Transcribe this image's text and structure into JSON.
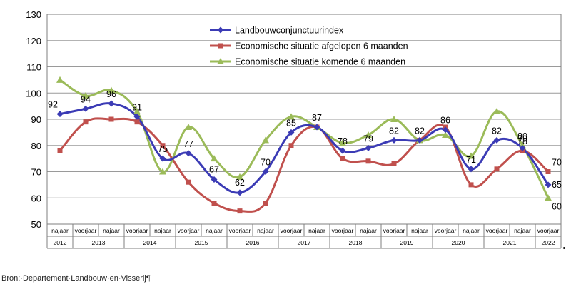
{
  "chart_data": {
    "type": "line",
    "title": "",
    "xlabel": "",
    "ylabel": "",
    "ylim": [
      50,
      130
    ],
    "yticks": [
      50,
      60,
      70,
      80,
      90,
      100,
      110,
      120,
      130
    ],
    "grid": "horizontal",
    "legend_position": "top-center",
    "categories": [
      "najaar",
      "voorjaar",
      "najaar",
      "voorjaar",
      "najaar",
      "voorjaar",
      "najaar",
      "voorjaar",
      "najaar",
      "voorjaar",
      "najaar",
      "voorjaar",
      "najaar",
      "voorjaar",
      "najaar",
      "voorjaar",
      "najaar",
      "voorjaar",
      "najaar",
      "voorjaar"
    ],
    "years": [
      {
        "label": "2012",
        "start": 0,
        "end": 0
      },
      {
        "label": "2013",
        "start": 1,
        "end": 2
      },
      {
        "label": "2014",
        "start": 3,
        "end": 4
      },
      {
        "label": "2015",
        "start": 5,
        "end": 6
      },
      {
        "label": "2016",
        "start": 7,
        "end": 8
      },
      {
        "label": "2017",
        "start": 9,
        "end": 10
      },
      {
        "label": "2018",
        "start": 11,
        "end": 12
      },
      {
        "label": "2019",
        "start": 13,
        "end": 14
      },
      {
        "label": "2020",
        "start": 15,
        "end": 16
      },
      {
        "label": "2021",
        "start": 17,
        "end": 18
      },
      {
        "label": "2022",
        "start": 19,
        "end": 19
      }
    ],
    "series": [
      {
        "name": "Landbouwconjunctuurindex",
        "color": "#3b3bb5",
        "marker": "diamond",
        "values": [
          92,
          94,
          96,
          91,
          75,
          77,
          67,
          62,
          70,
          85,
          87,
          78,
          79,
          82,
          82,
          86,
          71,
          82,
          79,
          65
        ],
        "labels": [
          "92",
          "94",
          "96",
          "91",
          "75",
          "77",
          "67",
          "62",
          "70",
          "85",
          "87",
          "78",
          "79",
          "82",
          "82",
          "86",
          "71",
          "82",
          "79",
          "65"
        ]
      },
      {
        "name": "Economische situatie afgelopen 6 maanden",
        "color": "#c0504d",
        "marker": "square",
        "values": [
          78,
          89,
          90,
          89,
          80,
          66,
          58,
          55,
          58,
          80,
          87,
          75,
          74,
          73,
          82,
          87,
          65,
          71,
          78,
          70
        ],
        "labels": [
          "",
          "",
          "",
          "",
          "",
          "",
          "",
          "",
          "",
          "",
          "",
          "",
          "",
          "",
          "",
          "",
          "",
          "",
          "78",
          "70"
        ]
      },
      {
        "name": "Economische situatie komende 6 maanden",
        "color": "#9bbb59",
        "marker": "triangle",
        "values": [
          105,
          99,
          101,
          93,
          70,
          87,
          75,
          68,
          82,
          91,
          87,
          81,
          84,
          90,
          82,
          84,
          76,
          93,
          80,
          60
        ],
        "labels": [
          "",
          "",
          "",
          "",
          "",
          "",
          "",
          "",
          "",
          "",
          "",
          "",
          "",
          "",
          "",
          "",
          "",
          "",
          "80",
          "60"
        ]
      }
    ]
  },
  "source": "Bron:·Departement·Landbouw·en·Visserij¶"
}
